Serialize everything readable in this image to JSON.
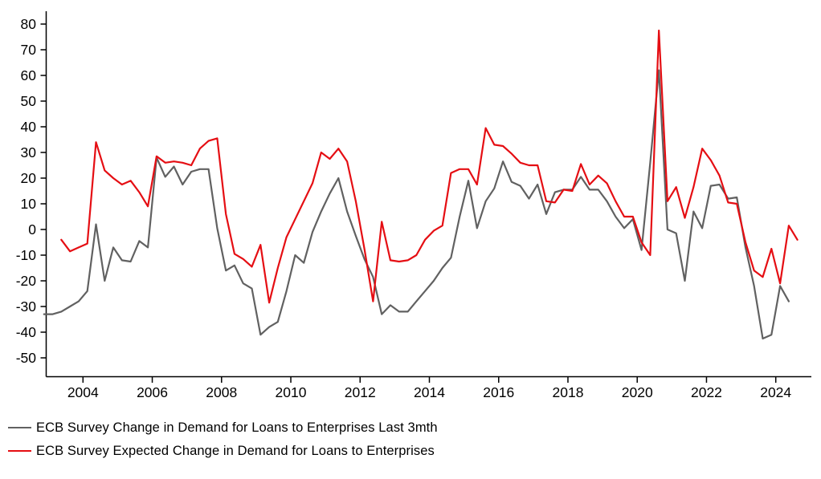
{
  "chart_data": {
    "type": "line",
    "title": "",
    "xlabel": "",
    "ylabel": "",
    "grid": "off",
    "background": "#ffffff",
    "legend_position": "bottom-left",
    "ylim": [
      -50,
      80
    ],
    "y_ticks": [
      80,
      70,
      60,
      50,
      40,
      30,
      20,
      10,
      0,
      -10,
      -20,
      -30,
      -40,
      -50
    ],
    "x_tick_years": [
      2004,
      2006,
      2008,
      2010,
      2012,
      2014,
      2016,
      2018,
      2020,
      2022,
      2024
    ],
    "categories_quarters": [
      "2002 Q4",
      "2003 Q1",
      "2003 Q2",
      "2003 Q3",
      "2003 Q4",
      "2004 Q1",
      "2004 Q2",
      "2004 Q3",
      "2004 Q4",
      "2005 Q1",
      "2005 Q2",
      "2005 Q3",
      "2005 Q4",
      "2006 Q1",
      "2006 Q2",
      "2006 Q3",
      "2006 Q4",
      "2007 Q1",
      "2007 Q2",
      "2007 Q3",
      "2007 Q4",
      "2008 Q1",
      "2008 Q2",
      "2008 Q3",
      "2008 Q4",
      "2009 Q1",
      "2009 Q2",
      "2009 Q3",
      "2009 Q4",
      "2010 Q1",
      "2010 Q2",
      "2010 Q3",
      "2010 Q4",
      "2011 Q1",
      "2011 Q2",
      "2011 Q3",
      "2011 Q4",
      "2012 Q1",
      "2012 Q2",
      "2012 Q3",
      "2012 Q4",
      "2013 Q1",
      "2013 Q2",
      "2013 Q3",
      "2013 Q4",
      "2014 Q1",
      "2014 Q2",
      "2014 Q3",
      "2014 Q4",
      "2015 Q1",
      "2015 Q2",
      "2015 Q3",
      "2015 Q4",
      "2016 Q1",
      "2016 Q2",
      "2016 Q3",
      "2016 Q4",
      "2017 Q1",
      "2017 Q2",
      "2017 Q3",
      "2017 Q4",
      "2018 Q1",
      "2018 Q2",
      "2018 Q3",
      "2018 Q4",
      "2019 Q1",
      "2019 Q2",
      "2019 Q3",
      "2019 Q4",
      "2020 Q1",
      "2020 Q2",
      "2020 Q3",
      "2020 Q4",
      "2021 Q1",
      "2021 Q2",
      "2021 Q3",
      "2021 Q4",
      "2022 Q1",
      "2022 Q2",
      "2022 Q3",
      "2022 Q4",
      "2023 Q1",
      "2023 Q2",
      "2023 Q3",
      "2023 Q4",
      "2024 Q1",
      "2024 Q2",
      "2024 Q3"
    ],
    "series": [
      {
        "name": "ECB Survey Change in Demand for Loans to Enterprises Last 3mth",
        "color": "#616161",
        "values": [
          -33,
          -33,
          -32,
          -30,
          -28,
          -24,
          2,
          -20,
          -7,
          -12,
          -12.5,
          -4.5,
          -7,
          28,
          20.5,
          24.5,
          17.5,
          22.5,
          23.5,
          23.5,
          0.5,
          -16,
          -14,
          -21,
          -23,
          -41,
          -38,
          -36,
          -24,
          -10,
          -13,
          -1,
          7,
          14,
          20,
          7,
          -2.5,
          -11.5,
          -18.5,
          -33,
          -29.5,
          -32,
          -32,
          -28,
          -24,
          -20,
          -15,
          -11,
          5,
          19,
          0.5,
          11,
          16,
          26.5,
          18.5,
          17,
          12,
          17.5,
          6,
          14.5,
          15.5,
          15.5,
          20.5,
          15.5,
          15.5,
          11,
          5,
          0.5,
          4,
          -8,
          26,
          62,
          0,
          -1.5,
          -20,
          7,
          0.5,
          17,
          17.5,
          12,
          12.5,
          -7,
          -22,
          -42.5,
          -41,
          -22,
          -28,
          null
        ]
      },
      {
        "name": "ECB Survey Expected Change in Demand for Loans to Enterprises",
        "color": "#e50e13",
        "values": [
          null,
          null,
          -4,
          -8.5,
          -7,
          -5.5,
          34,
          23,
          20,
          17.5,
          19,
          14.5,
          9,
          28.5,
          26,
          26.5,
          26,
          25,
          31.5,
          34.5,
          35.5,
          6,
          -9.5,
          -11.5,
          -14.5,
          -6,
          -28.5,
          -15,
          -3,
          4,
          11,
          18,
          30,
          27.5,
          31.5,
          26.5,
          11,
          -7.5,
          -28,
          3,
          -12,
          -12.5,
          -12,
          -10,
          -4,
          -0.5,
          1.5,
          22,
          23.5,
          23.5,
          17.5,
          39.5,
          33,
          32.5,
          29.5,
          26,
          25,
          25,
          11,
          10.5,
          15.5,
          15,
          25.5,
          17.5,
          21,
          18,
          11,
          5,
          5,
          -5,
          -10,
          77.5,
          11,
          16.5,
          4.5,
          16.5,
          31.5,
          27,
          21,
          10.5,
          10,
          -5,
          -16,
          -18.5,
          -7.5,
          -21,
          1.5,
          -4
        ]
      }
    ]
  }
}
